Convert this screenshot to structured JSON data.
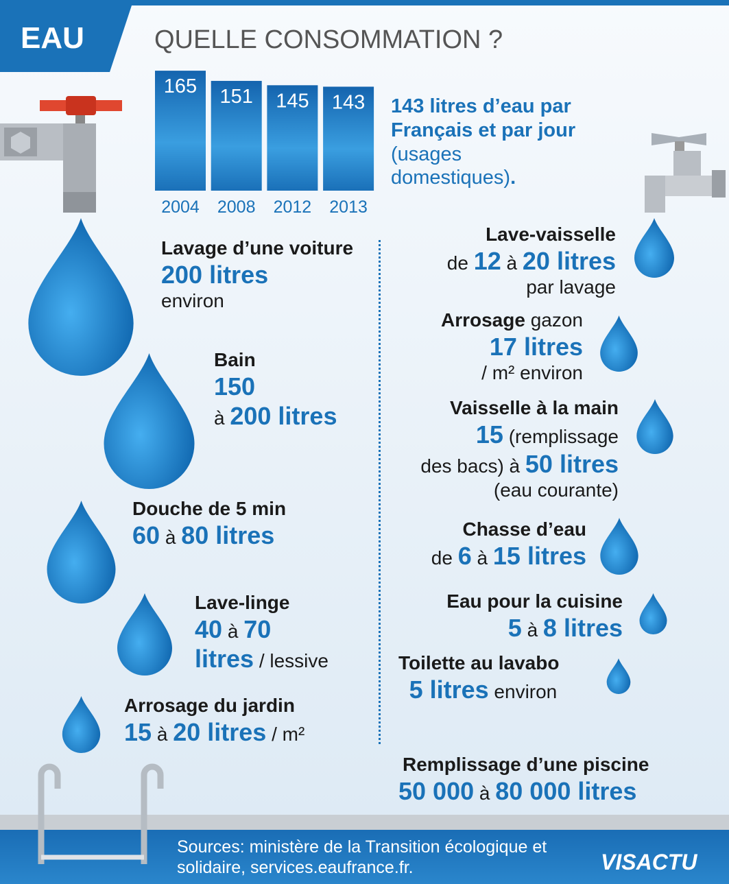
{
  "header": {
    "tag": "EAU",
    "title": "QUELLE CONSOMMATION ?"
  },
  "chart": {
    "type": "bar",
    "categories": [
      "2004",
      "2008",
      "2012",
      "2013"
    ],
    "values": [
      165,
      151,
      145,
      143
    ],
    "caption": {
      "main": "143 litres d’eau par Français et par jour",
      "note": "(usages domestiques)",
      "end": "."
    }
  },
  "left": [
    {
      "parts": [
        "Lavage d’une voiture",
        "200 litres",
        "environ"
      ]
    },
    {
      "parts": [
        "Bain",
        "150",
        "à",
        "200 litres"
      ]
    },
    {
      "parts": [
        "Douche de 5 min",
        "60",
        "à",
        "80 litres"
      ]
    },
    {
      "parts": [
        "Lave-linge",
        "40",
        "à",
        "70",
        "litres",
        "/ lessive"
      ]
    },
    {
      "parts": [
        "Arrosage du jardin",
        "15",
        "à",
        "20 litres",
        "/ m²"
      ]
    }
  ],
  "right": [
    {
      "parts": [
        "Lave-vaisselle",
        "de",
        "12",
        "à",
        "20 litres",
        "par lavage"
      ]
    },
    {
      "parts": [
        "Arrosage",
        "gazon",
        "17 litres",
        "/ m² environ"
      ]
    },
    {
      "parts": [
        "Vaisselle à la main",
        "15",
        "(remplissage",
        "des bacs) à",
        "50 litres",
        "(eau courante)"
      ]
    },
    {
      "parts": [
        "Chasse d’eau",
        "de",
        "6",
        "à",
        "15 litres"
      ]
    },
    {
      "parts": [
        "Eau pour la cuisine",
        "5",
        "à",
        "8 litres"
      ]
    },
    {
      "parts": [
        "Toilette au lavabo",
        "5 litres",
        "environ"
      ]
    }
  ],
  "pool": {
    "parts": [
      "Remplissage d’une piscine",
      "50 000",
      "à",
      "80 000 litres"
    ]
  },
  "footer": {
    "sources": "Sources: ministère de la Transition écologique et solidaire, services.eaufrance.fr.",
    "logo": "VISACTU"
  }
}
